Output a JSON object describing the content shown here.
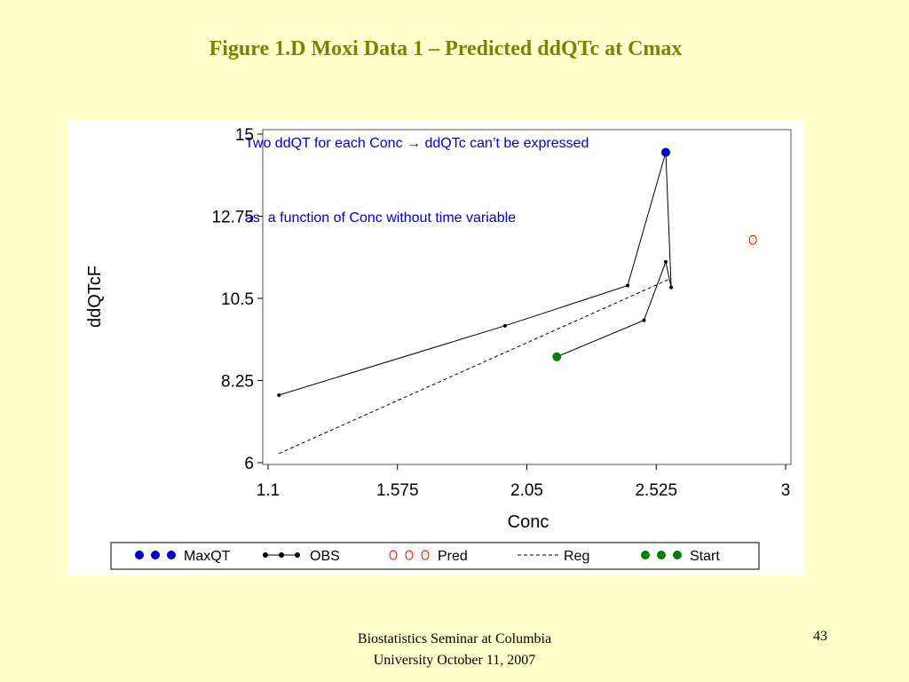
{
  "slide": {
    "title": "Figure 1.D Moxi Data 1 – Predicted ddQTc at Cmax",
    "subtitle_lines": [
      "Two ddQT for each Conc → ddQTc can’t be expressed",
      "as  a function of Conc without time variable"
    ],
    "footer_line1": "Biostatistics Seminar at Columbia",
    "footer_line2": "University October 11, 2007",
    "page_number": "43"
  },
  "chart_data": {
    "type": "scatter",
    "xlabel": "Conc",
    "ylabel": "ddQTcF",
    "xlim": [
      1.1,
      3.0
    ],
    "ylim": [
      6,
      15
    ],
    "xticks": [
      "1.1",
      "1.575",
      "2.05",
      "2.525",
      "3"
    ],
    "yticks": [
      "6",
      "8.25",
      "10.5",
      "12.75",
      "15"
    ],
    "grid": false,
    "legend_position": "bottom",
    "series": [
      {
        "name": "MaxQT",
        "kind": "points",
        "color": "#0000cc",
        "marker": "filled-circle",
        "points": [
          {
            "x": 2.56,
            "y": 14.5
          }
        ]
      },
      {
        "name": "OBS",
        "kind": "line-points",
        "color": "#000000",
        "marker": "small-dot",
        "points": [
          {
            "x": 1.14,
            "y": 7.85
          },
          {
            "x": 1.97,
            "y": 9.75
          },
          {
            "x": 2.42,
            "y": 10.85
          },
          {
            "x": 2.56,
            "y": 14.5
          },
          {
            "x": 2.58,
            "y": 10.8
          },
          {
            "x": 2.56,
            "y": 11.5
          },
          {
            "x": 2.48,
            "y": 9.9
          },
          {
            "x": 2.16,
            "y": 8.9
          }
        ]
      },
      {
        "name": "Pred",
        "kind": "points",
        "color": "#ff0000",
        "marker": "open-circle",
        "points": [
          {
            "x": 2.88,
            "y": 12.1
          }
        ]
      },
      {
        "name": "Reg",
        "kind": "dashed-line",
        "color": "#000000",
        "marker": "none",
        "points": [
          {
            "x": 1.14,
            "y": 6.25
          },
          {
            "x": 2.58,
            "y": 11.05
          }
        ]
      },
      {
        "name": "Start",
        "kind": "points",
        "color": "#008000",
        "marker": "filled-circle",
        "points": [
          {
            "x": 2.16,
            "y": 8.9
          }
        ]
      }
    ]
  }
}
